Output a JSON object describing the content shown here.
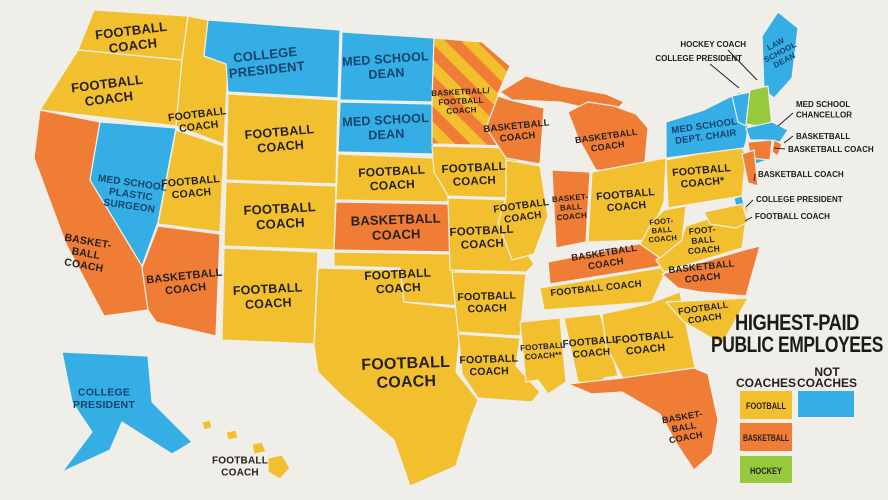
{
  "title": {
    "line1": "HIGHEST-PAID",
    "line2": "PUBLIC EMPLOYEES"
  },
  "legend": {
    "coaches_header": "COACHES",
    "not_header_line1": "NOT",
    "not_header_line2": "COACHES",
    "items": [
      {
        "id": "football",
        "label": "FOOTBALL"
      },
      {
        "id": "not_coach",
        "label": ""
      },
      {
        "id": "basketball",
        "label": "BASKETBALL"
      },
      {
        "id": "hockey",
        "label": "HOCKEY"
      }
    ]
  },
  "colors": {
    "football": "#F2C02F",
    "basketball": "#EF7D36",
    "hockey": "#96C93D",
    "not_coach": "#34AEE4",
    "background": "#F0EEE9",
    "label_dark": "#26211E",
    "label_blue": "#15436B",
    "callout_text": "#1E1C1A"
  },
  "states": [
    {
      "id": "WA",
      "category": "football",
      "label": [
        "FOOTBALL",
        "COACH"
      ]
    },
    {
      "id": "OR",
      "category": "football",
      "label": [
        "FOOTBALL",
        "COACH"
      ]
    },
    {
      "id": "CA",
      "category": "basketball",
      "label": [
        "BASKET-",
        "BALL",
        "COACH"
      ]
    },
    {
      "id": "NV",
      "category": "not_coach",
      "label": [
        "MED SCHOOL",
        "PLASTIC",
        "SURGEON"
      ]
    },
    {
      "id": "ID",
      "category": "football",
      "label": [
        "FOOTBALL",
        "COACH"
      ]
    },
    {
      "id": "MT",
      "category": "not_coach",
      "label": [
        "COLLEGE",
        "PRESIDENT"
      ]
    },
    {
      "id": "WY",
      "category": "football",
      "label": [
        "FOOTBALL",
        "COACH"
      ]
    },
    {
      "id": "UT",
      "category": "football",
      "label": [
        "FOOTBALL",
        "COACH"
      ]
    },
    {
      "id": "CO",
      "category": "football",
      "label": [
        "FOOTBALL",
        "COACH"
      ]
    },
    {
      "id": "AZ",
      "category": "basketball",
      "label": [
        "BASKETBALL",
        "COACH"
      ]
    },
    {
      "id": "NM",
      "category": "football",
      "label": [
        "FOOTBALL",
        "COACH"
      ]
    },
    {
      "id": "ND",
      "category": "not_coach",
      "label": [
        "MED SCHOOL",
        "DEAN"
      ]
    },
    {
      "id": "SD",
      "category": "not_coach",
      "label": [
        "MED SCHOOL",
        "DEAN"
      ]
    },
    {
      "id": "NE",
      "category": "football",
      "label": [
        "FOOTBALL",
        "COACH"
      ]
    },
    {
      "id": "KS",
      "category": "basketball",
      "label": [
        "BASKETBALL",
        "COACH"
      ]
    },
    {
      "id": "OK",
      "category": "football",
      "label": [
        "FOOTBALL",
        "COACH"
      ]
    },
    {
      "id": "TX",
      "category": "football",
      "label": [
        "FOOTBALL",
        "COACH"
      ]
    },
    {
      "id": "MN",
      "category": "basketball_football",
      "label": [
        "BASKETBALL/",
        "FOOTBALL",
        "COACH"
      ]
    },
    {
      "id": "IA",
      "category": "football",
      "label": [
        "FOOTBALL",
        "COACH"
      ]
    },
    {
      "id": "MO",
      "category": "football",
      "label": [
        "FOOTBALL",
        "COACH"
      ]
    },
    {
      "id": "AR",
      "category": "football",
      "label": [
        "FOOTBALL",
        "COACH"
      ]
    },
    {
      "id": "LA",
      "category": "football",
      "label": [
        "FOOTBALL",
        "COACH"
      ]
    },
    {
      "id": "WI",
      "category": "basketball",
      "label": [
        "BASKETBALL",
        "COACH"
      ]
    },
    {
      "id": "MI",
      "category": "basketball",
      "label": [
        "BASKETBALL",
        "COACH"
      ]
    },
    {
      "id": "IL",
      "category": "football",
      "label": [
        "FOOTBALL",
        "COACH"
      ]
    },
    {
      "id": "IN",
      "category": "basketball",
      "label": [
        "BASKET-",
        "BALL",
        "COACH"
      ]
    },
    {
      "id": "OH",
      "category": "football",
      "label": [
        "FOOTBALL",
        "COACH"
      ]
    },
    {
      "id": "KY",
      "category": "basketball",
      "label": [
        "BASKETBALL",
        "COACH"
      ]
    },
    {
      "id": "TN",
      "category": "football",
      "label": [
        "FOOTBALL COACH"
      ]
    },
    {
      "id": "MS",
      "category": "football",
      "label": [
        "FOOTBALL",
        "COACH**"
      ]
    },
    {
      "id": "AL",
      "category": "football",
      "label": [
        "FOOTBALL",
        "COACH"
      ]
    },
    {
      "id": "GA",
      "category": "football",
      "label": [
        "FOOTBALL",
        "COACH"
      ]
    },
    {
      "id": "FL",
      "category": "basketball",
      "label": [
        "BASKET-",
        "BALL",
        "COACH"
      ]
    },
    {
      "id": "SC",
      "category": "football",
      "label": [
        "FOOTBALL",
        "COACH"
      ]
    },
    {
      "id": "NC",
      "category": "basketball",
      "label": [
        "BASKETBALL",
        "COACH"
      ]
    },
    {
      "id": "VA",
      "category": "football",
      "label": [
        "FOOT-",
        "BALL",
        "COACH"
      ]
    },
    {
      "id": "WV",
      "category": "football",
      "label": [
        "FOOT-",
        "BALL",
        "COACH"
      ]
    },
    {
      "id": "PA",
      "category": "football",
      "label": [
        "FOOTBALL",
        "COACH*"
      ]
    },
    {
      "id": "NY",
      "category": "not_coach",
      "label": [
        "MED SCHOOL",
        "DEPT. CHAIR"
      ]
    },
    {
      "id": "ME",
      "category": "not_coach",
      "label": [
        "LAW",
        "SCHOOL",
        "DEAN"
      ]
    },
    {
      "id": "VT",
      "category": "not_coach",
      "label": []
    },
    {
      "id": "NH",
      "category": "hockey",
      "label": []
    },
    {
      "id": "MA",
      "category": "not_coach",
      "label": []
    },
    {
      "id": "RI",
      "category": "basketball",
      "label": []
    },
    {
      "id": "CT",
      "category": "basketball",
      "label": []
    },
    {
      "id": "NJ",
      "category": "basketball",
      "label": []
    },
    {
      "id": "DE",
      "category": "not_coach",
      "label": []
    },
    {
      "id": "MD",
      "category": "football",
      "label": []
    },
    {
      "id": "AK",
      "category": "not_coach",
      "label": [
        "COLLEGE",
        "PRESIDENT"
      ]
    },
    {
      "id": "HI",
      "category": "football",
      "label": [
        "FOOTBALL",
        "COACH"
      ]
    }
  ],
  "callouts": [
    {
      "target": "NH",
      "label": [
        "HOCKEY COACH"
      ]
    },
    {
      "target": "VT",
      "label": [
        "COLLEGE PRESIDENT"
      ]
    },
    {
      "target": "MA",
      "label": [
        "MED SCHOOL",
        "CHANCELLOR"
      ]
    },
    {
      "target": "RI",
      "label": [
        "BASKETBALL"
      ]
    },
    {
      "target": "CT",
      "label": [
        "BASKETBALL COACH"
      ]
    },
    {
      "target": "NJ",
      "label": [
        "BASKETBALL COACH"
      ]
    },
    {
      "target": "DE",
      "label": [
        "COLLEGE PRESIDENT"
      ]
    },
    {
      "target": "MD",
      "label": [
        "FOOTBALL COACH"
      ]
    }
  ]
}
